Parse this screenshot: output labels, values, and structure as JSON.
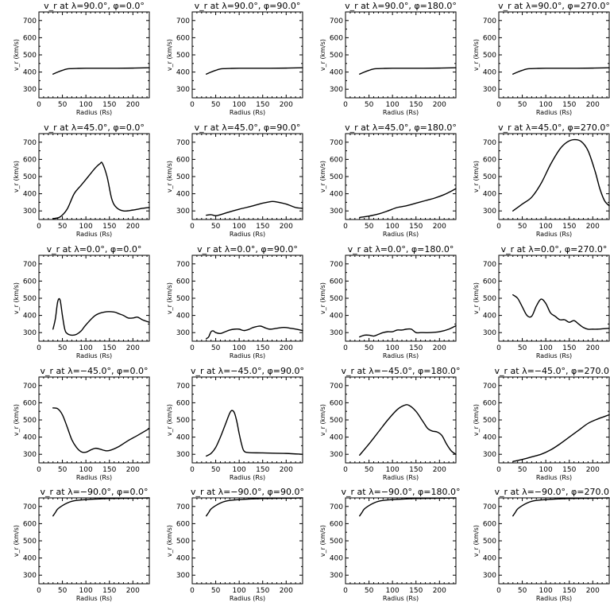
{
  "figure": {
    "background": "#ffffff",
    "line_color": "#000000"
  },
  "chart_data": [
    {
      "type": "line",
      "title": "v_r at λ=90.0°, φ=0.0°",
      "xlabel": "Radius (Rs)",
      "ylabel": "v_r (km/s)",
      "xlim": [
        0,
        235
      ],
      "ylim": [
        250,
        750
      ],
      "xticks": [
        0,
        50,
        100,
        150,
        200
      ],
      "yticks": [
        300,
        400,
        500,
        600,
        700
      ],
      "x": [
        30,
        40,
        50,
        60,
        70,
        80,
        100,
        150,
        200,
        235
      ],
      "y": [
        388,
        400,
        410,
        418,
        420,
        421,
        422,
        422,
        423,
        425
      ]
    },
    {
      "type": "line",
      "title": "v_r at λ=90.0°, φ=90.0°",
      "xlabel": "Radius (Rs)",
      "ylabel": "v_r (km/s)",
      "xlim": [
        0,
        235
      ],
      "ylim": [
        250,
        750
      ],
      "xticks": [
        0,
        50,
        100,
        150,
        200
      ],
      "yticks": [
        300,
        400,
        500,
        600,
        700
      ],
      "x": [
        30,
        40,
        50,
        60,
        70,
        80,
        100,
        150,
        200,
        235
      ],
      "y": [
        388,
        400,
        410,
        418,
        420,
        421,
        422,
        422,
        423,
        425
      ]
    },
    {
      "type": "line",
      "title": "v_r at λ=90.0°, φ=180.0°",
      "xlabel": "Radius (Rs)",
      "ylabel": "v_r (km/s)",
      "xlim": [
        0,
        235
      ],
      "ylim": [
        250,
        750
      ],
      "xticks": [
        0,
        50,
        100,
        150,
        200
      ],
      "yticks": [
        300,
        400,
        500,
        600,
        700
      ],
      "x": [
        30,
        40,
        50,
        60,
        70,
        80,
        100,
        150,
        200,
        235
      ],
      "y": [
        388,
        400,
        410,
        418,
        420,
        421,
        422,
        422,
        423,
        425
      ]
    },
    {
      "type": "line",
      "title": "v_r at λ=90.0°, φ=270.0°",
      "xlabel": "Radius (Rs)",
      "ylabel": "v_r (km/s)",
      "xlim": [
        0,
        235
      ],
      "ylim": [
        250,
        750
      ],
      "xticks": [
        0,
        50,
        100,
        150,
        200
      ],
      "yticks": [
        300,
        400,
        500,
        600,
        700
      ],
      "x": [
        30,
        40,
        50,
        60,
        70,
        80,
        100,
        150,
        200,
        235
      ],
      "y": [
        388,
        400,
        410,
        418,
        420,
        421,
        422,
        422,
        423,
        425
      ]
    },
    {
      "type": "line",
      "title": "v_r at λ=45.0°, φ=0.0°",
      "xlabel": "Radius (Rs)",
      "ylabel": "v_r (km/s)",
      "xlim": [
        0,
        235
      ],
      "ylim": [
        250,
        750
      ],
      "xticks": [
        0,
        50,
        100,
        150,
        200
      ],
      "yticks": [
        300,
        400,
        500,
        600,
        700
      ],
      "x": [
        30,
        45,
        60,
        75,
        90,
        105,
        120,
        130,
        135,
        145,
        155,
        165,
        180,
        200,
        220,
        235
      ],
      "y": [
        255,
        265,
        310,
        400,
        450,
        500,
        550,
        575,
        578,
        500,
        370,
        320,
        300,
        305,
        315,
        320
      ]
    },
    {
      "type": "line",
      "title": "v_r at λ=45.0°, φ=90.0°",
      "xlabel": "Radius (Rs)",
      "ylabel": "v_r (km/s)",
      "xlim": [
        0,
        235
      ],
      "ylim": [
        250,
        750
      ],
      "xticks": [
        0,
        50,
        100,
        150,
        200
      ],
      "yticks": [
        300,
        400,
        500,
        600,
        700
      ],
      "x": [
        30,
        40,
        50,
        60,
        80,
        100,
        130,
        150,
        170,
        180,
        200,
        220,
        235
      ],
      "y": [
        275,
        278,
        272,
        278,
        295,
        310,
        330,
        345,
        355,
        352,
        340,
        320,
        315
      ]
    },
    {
      "type": "line",
      "title": "v_r at λ=45.0°, φ=180.0°",
      "xlabel": "Radius (Rs)",
      "ylabel": "v_r (km/s)",
      "xlim": [
        0,
        235
      ],
      "ylim": [
        250,
        750
      ],
      "xticks": [
        0,
        50,
        100,
        150,
        200
      ],
      "yticks": [
        300,
        400,
        500,
        600,
        700
      ],
      "x": [
        30,
        50,
        70,
        90,
        110,
        130,
        150,
        170,
        190,
        210,
        225,
        235
      ],
      "y": [
        262,
        270,
        282,
        300,
        320,
        330,
        345,
        360,
        375,
        395,
        415,
        430
      ]
    },
    {
      "type": "line",
      "title": "v_r at λ=45.0°, φ=270.0°",
      "xlabel": "Radius (Rs)",
      "ylabel": "v_r (km/s)",
      "xlim": [
        0,
        235
      ],
      "ylim": [
        250,
        750
      ],
      "xticks": [
        0,
        50,
        100,
        150,
        200
      ],
      "yticks": [
        300,
        400,
        500,
        600,
        700
      ],
      "x": [
        30,
        50,
        70,
        90,
        110,
        130,
        145,
        160,
        175,
        190,
        205,
        215,
        225,
        235
      ],
      "y": [
        300,
        340,
        380,
        460,
        570,
        660,
        700,
        715,
        705,
        650,
        530,
        430,
        360,
        330
      ]
    },
    {
      "type": "line",
      "title": "v_r at λ=0.0°, φ=0.0°",
      "xlabel": "Radius (Rs)",
      "ylabel": "v_r (km/s)",
      "xlim": [
        0,
        235
      ],
      "ylim": [
        250,
        750
      ],
      "xticks": [
        0,
        50,
        100,
        150,
        200
      ],
      "yticks": [
        300,
        400,
        500,
        600,
        700
      ],
      "x": [
        30,
        35,
        40,
        45,
        50,
        55,
        60,
        70,
        80,
        90,
        100,
        120,
        140,
        160,
        170,
        180,
        190,
        200,
        210,
        220,
        235
      ],
      "y": [
        320,
        380,
        480,
        490,
        400,
        320,
        295,
        285,
        290,
        310,
        345,
        400,
        420,
        420,
        410,
        400,
        385,
        385,
        390,
        375,
        360
      ]
    },
    {
      "type": "line",
      "title": "v_r at λ=0.0°, φ=90.0°",
      "xlabel": "Radius (Rs)",
      "ylabel": "v_r (km/s)",
      "xlim": [
        0,
        235
      ],
      "ylim": [
        250,
        750
      ],
      "xticks": [
        0,
        50,
        100,
        150,
        200
      ],
      "yticks": [
        300,
        400,
        500,
        600,
        700
      ],
      "x": [
        30,
        35,
        40,
        45,
        50,
        60,
        70,
        80,
        90,
        100,
        110,
        120,
        130,
        145,
        155,
        165,
        180,
        195,
        210,
        225,
        235
      ],
      "y": [
        265,
        275,
        305,
        310,
        300,
        295,
        305,
        315,
        320,
        320,
        312,
        318,
        330,
        338,
        328,
        320,
        325,
        330,
        325,
        318,
        312
      ]
    },
    {
      "type": "line",
      "title": "v_r at λ=0.0°, φ=180.0°",
      "xlabel": "Radius (Rs)",
      "ylabel": "v_r (km/s)",
      "xlim": [
        0,
        235
      ],
      "ylim": [
        250,
        750
      ],
      "xticks": [
        0,
        50,
        100,
        150,
        200
      ],
      "yticks": [
        300,
        400,
        500,
        600,
        700
      ],
      "x": [
        30,
        40,
        50,
        60,
        70,
        80,
        90,
        100,
        110,
        120,
        130,
        140,
        150,
        160,
        180,
        200,
        220,
        235
      ],
      "y": [
        275,
        285,
        285,
        280,
        290,
        300,
        305,
        305,
        315,
        315,
        320,
        320,
        300,
        300,
        300,
        305,
        320,
        340
      ]
    },
    {
      "type": "line",
      "title": "v_r at λ=0.0°, φ=270.0°",
      "xlabel": "Radius (Rs)",
      "ylabel": "v_r (km/s)",
      "xlim": [
        0,
        235
      ],
      "ylim": [
        250,
        750
      ],
      "xticks": [
        0,
        50,
        100,
        150,
        200
      ],
      "yticks": [
        300,
        400,
        500,
        600,
        700
      ],
      "x": [
        30,
        40,
        50,
        60,
        70,
        80,
        90,
        100,
        110,
        120,
        130,
        140,
        150,
        160,
        170,
        180,
        190,
        200,
        210,
        220,
        235
      ],
      "y": [
        520,
        500,
        450,
        400,
        395,
        455,
        495,
        470,
        415,
        395,
        375,
        375,
        360,
        370,
        350,
        330,
        320,
        320,
        320,
        322,
        325
      ]
    },
    {
      "type": "line",
      "title": "v_r at λ=−45.0°, φ=0.0°",
      "xlabel": "Radius (Rs)",
      "ylabel": "v_r (km/s)",
      "xlim": [
        0,
        235
      ],
      "ylim": [
        250,
        750
      ],
      "xticks": [
        0,
        50,
        100,
        150,
        200
      ],
      "yticks": [
        300,
        400,
        500,
        600,
        700
      ],
      "x": [
        30,
        40,
        50,
        60,
        70,
        80,
        90,
        100,
        110,
        120,
        130,
        140,
        150,
        170,
        190,
        210,
        235
      ],
      "y": [
        570,
        565,
        530,
        460,
        385,
        340,
        315,
        312,
        325,
        335,
        330,
        322,
        322,
        345,
        380,
        410,
        450
      ]
    },
    {
      "type": "line",
      "title": "v_r at λ=−45.0°, φ=90.0°",
      "xlabel": "Radius (Rs)",
      "ylabel": "v_r (km/s)",
      "xlim": [
        0,
        235
      ],
      "ylim": [
        250,
        750
      ],
      "xticks": [
        0,
        50,
        100,
        150,
        200
      ],
      "yticks": [
        300,
        400,
        500,
        600,
        700
      ],
      "x": [
        30,
        40,
        50,
        60,
        70,
        80,
        85,
        90,
        95,
        100,
        105,
        110,
        120,
        150,
        200,
        235
      ],
      "y": [
        290,
        305,
        340,
        400,
        470,
        540,
        555,
        540,
        490,
        420,
        360,
        320,
        310,
        308,
        305,
        300
      ]
    },
    {
      "type": "line",
      "title": "v_r at λ=−45.0°, φ=180.0°",
      "xlabel": "Radius (Rs)",
      "ylabel": "v_r (km/s)",
      "xlim": [
        0,
        235
      ],
      "ylim": [
        250,
        750
      ],
      "xticks": [
        0,
        50,
        100,
        150,
        200
      ],
      "yticks": [
        300,
        400,
        500,
        600,
        700
      ],
      "x": [
        30,
        50,
        70,
        90,
        110,
        125,
        135,
        150,
        165,
        175,
        185,
        195,
        205,
        215,
        225,
        235
      ],
      "y": [
        295,
        360,
        430,
        500,
        560,
        585,
        585,
        550,
        490,
        450,
        435,
        430,
        410,
        360,
        320,
        300
      ]
    },
    {
      "type": "line",
      "title": "v_r at λ=−45.0°, φ=270.0°",
      "xlabel": "Radius (Rs)",
      "ylabel": "v_r (km/s)",
      "xlim": [
        0,
        235
      ],
      "ylim": [
        250,
        750
      ],
      "xticks": [
        0,
        50,
        100,
        150,
        200
      ],
      "yticks": [
        300,
        400,
        500,
        600,
        700
      ],
      "x": [
        30,
        50,
        70,
        90,
        110,
        130,
        150,
        170,
        190,
        210,
        225,
        235
      ],
      "y": [
        258,
        270,
        285,
        300,
        325,
        360,
        400,
        440,
        480,
        505,
        520,
        530
      ]
    },
    {
      "type": "line",
      "title": "v_r at λ=−90.0°, φ=0.0°",
      "xlabel": "Radius (Rs)",
      "ylabel": "v_r (km/s)",
      "xlim": [
        0,
        235
      ],
      "ylim": [
        250,
        750
      ],
      "xticks": [
        0,
        50,
        100,
        150,
        200
      ],
      "yticks": [
        300,
        400,
        500,
        600,
        700
      ],
      "x": [
        30,
        35,
        40,
        50,
        60,
        70,
        80,
        100,
        150,
        200,
        235
      ],
      "y": [
        645,
        665,
        685,
        705,
        720,
        730,
        735,
        740,
        746,
        748,
        750
      ]
    },
    {
      "type": "line",
      "title": "v_r at λ=−90.0°, φ=90.0°",
      "xlabel": "Radius (Rs)",
      "ylabel": "v_r (km/s)",
      "xlim": [
        0,
        235
      ],
      "ylim": [
        250,
        750
      ],
      "xticks": [
        0,
        50,
        100,
        150,
        200
      ],
      "yticks": [
        300,
        400,
        500,
        600,
        700
      ],
      "x": [
        30,
        35,
        40,
        50,
        60,
        70,
        80,
        100,
        150,
        200,
        235
      ],
      "y": [
        645,
        665,
        685,
        705,
        720,
        730,
        735,
        740,
        746,
        748,
        750
      ]
    },
    {
      "type": "line",
      "title": "v_r at λ=−90.0°, φ=180.0°",
      "xlabel": "Radius (Rs)",
      "ylabel": "v_r (km/s)",
      "xlim": [
        0,
        235
      ],
      "ylim": [
        250,
        750
      ],
      "xticks": [
        0,
        50,
        100,
        150,
        200
      ],
      "yticks": [
        300,
        400,
        500,
        600,
        700
      ],
      "x": [
        30,
        35,
        40,
        50,
        60,
        70,
        80,
        100,
        150,
        200,
        235
      ],
      "y": [
        645,
        665,
        685,
        705,
        720,
        730,
        735,
        740,
        746,
        748,
        750
      ]
    },
    {
      "type": "line",
      "title": "v_r at λ=−90.0°, φ=270.0°",
      "xlabel": "Radius (Rs)",
      "ylabel": "v_r (km/s)",
      "xlim": [
        0,
        235
      ],
      "ylim": [
        250,
        750
      ],
      "xticks": [
        0,
        50,
        100,
        150,
        200
      ],
      "yticks": [
        300,
        400,
        500,
        600,
        700
      ],
      "x": [
        30,
        35,
        40,
        50,
        60,
        70,
        80,
        100,
        150,
        200,
        235
      ],
      "y": [
        645,
        665,
        685,
        705,
        720,
        730,
        735,
        740,
        746,
        748,
        750
      ]
    }
  ]
}
